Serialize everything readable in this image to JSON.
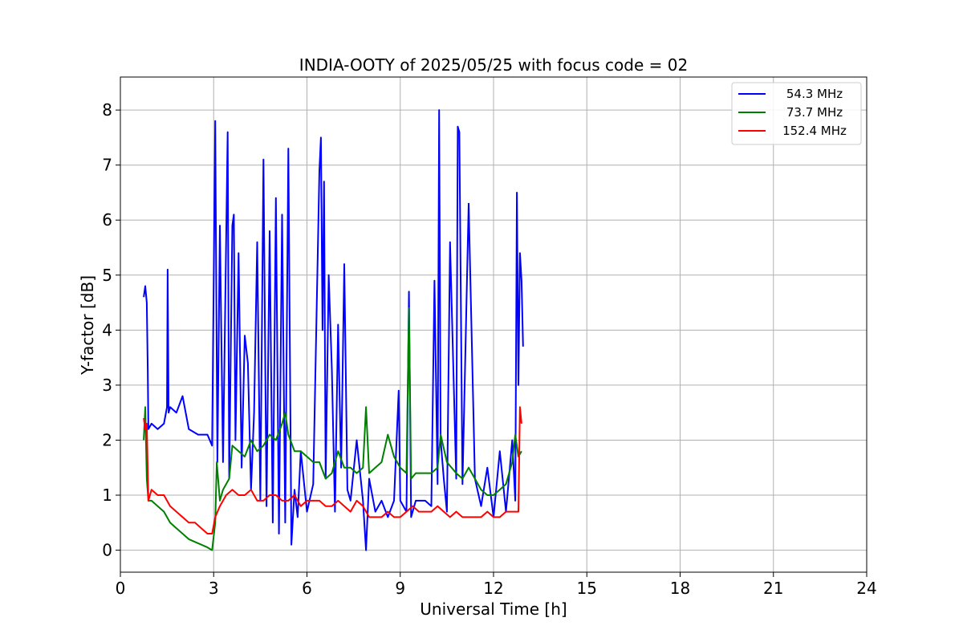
{
  "chart_data": {
    "type": "line",
    "title": "INDIA-OOTY of 2025/05/25 with focus code = 02",
    "xlabel": "Universal Time [h]",
    "ylabel": "Y-factor [dB]",
    "xlim": [
      0,
      24
    ],
    "ylim": [
      -0.4,
      8.6
    ],
    "xticks": [
      0,
      3,
      6,
      9,
      12,
      15,
      18,
      21,
      24
    ],
    "xtick_labels": [
      "0",
      "3",
      "6",
      "9",
      "12",
      "15",
      "18",
      "21",
      "24"
    ],
    "yticks": [
      0,
      1,
      2,
      3,
      4,
      5,
      6,
      7,
      8
    ],
    "ytick_labels": [
      "0",
      "1",
      "2",
      "3",
      "4",
      "5",
      "6",
      "7",
      "8"
    ],
    "grid": true,
    "legend_position": "top-right",
    "series": [
      {
        "name": "54.3 MHz",
        "color": "#0000ff",
        "x": [
          0.75,
          0.8,
          0.85,
          0.88,
          0.9,
          1.0,
          1.2,
          1.4,
          1.5,
          1.52,
          1.55,
          1.6,
          1.8,
          2.0,
          2.2,
          2.5,
          2.8,
          2.95,
          3.05,
          3.08,
          3.12,
          3.2,
          3.3,
          3.45,
          3.5,
          3.6,
          3.65,
          3.7,
          3.8,
          3.9,
          4.0,
          4.1,
          4.2,
          4.3,
          4.4,
          4.5,
          4.6,
          4.7,
          4.8,
          4.9,
          5.0,
          5.1,
          5.2,
          5.3,
          5.4,
          5.5,
          5.6,
          5.7,
          5.8,
          6.0,
          6.2,
          6.4,
          6.45,
          6.5,
          6.55,
          6.6,
          6.7,
          6.8,
          6.9,
          7.0,
          7.1,
          7.2,
          7.3,
          7.4,
          7.6,
          7.8,
          7.9,
          8.0,
          8.2,
          8.4,
          8.6,
          8.8,
          8.95,
          9.0,
          9.2,
          9.28,
          9.35,
          9.5,
          9.8,
          10.0,
          10.1,
          10.2,
          10.25,
          10.3,
          10.4,
          10.5,
          10.6,
          10.8,
          10.85,
          10.9,
          11.0,
          11.2,
          11.4,
          11.6,
          11.8,
          12.0,
          12.2,
          12.4,
          12.6,
          12.7,
          12.75,
          12.8,
          12.85,
          12.9,
          12.95
        ],
        "y": [
          4.6,
          4.8,
          4.5,
          3.3,
          2.2,
          2.3,
          2.2,
          2.3,
          2.6,
          5.1,
          2.5,
          2.6,
          2.5,
          2.8,
          2.2,
          2.1,
          2.1,
          1.9,
          7.8,
          5.0,
          1.6,
          5.9,
          1.6,
          7.6,
          1.3,
          5.9,
          6.1,
          2.0,
          5.4,
          1.5,
          3.9,
          3.4,
          1.1,
          2.5,
          5.6,
          0.9,
          7.1,
          0.8,
          5.8,
          0.5,
          6.4,
          0.3,
          6.1,
          0.5,
          7.3,
          0.1,
          1.1,
          0.6,
          1.8,
          0.7,
          1.2,
          6.9,
          7.5,
          4.0,
          6.7,
          1.3,
          5.0,
          3.3,
          0.7,
          4.1,
          1.5,
          5.2,
          1.1,
          0.9,
          2.0,
          0.9,
          0.0,
          1.3,
          0.7,
          0.9,
          0.6,
          0.9,
          2.9,
          0.9,
          0.7,
          4.7,
          0.6,
          0.9,
          0.9,
          0.8,
          4.9,
          1.2,
          8.0,
          2.0,
          1.3,
          0.7,
          5.6,
          1.3,
          7.7,
          7.6,
          1.2,
          6.3,
          1.3,
          0.8,
          1.5,
          0.6,
          1.8,
          0.7,
          2.0,
          0.9,
          6.5,
          3.0,
          5.4,
          4.9,
          3.7
        ]
      },
      {
        "name": "73.7 MHz",
        "color": "#008000",
        "x": [
          0.75,
          0.8,
          0.85,
          0.9,
          1.0,
          1.2,
          1.4,
          1.6,
          1.8,
          2.0,
          2.2,
          2.4,
          2.6,
          2.8,
          2.95,
          3.05,
          3.1,
          3.2,
          3.3,
          3.4,
          3.5,
          3.6,
          3.8,
          4.0,
          4.2,
          4.4,
          4.6,
          4.8,
          5.0,
          5.2,
          5.3,
          5.4,
          5.6,
          5.8,
          6.0,
          6.2,
          6.4,
          6.6,
          6.8,
          7.0,
          7.2,
          7.4,
          7.6,
          7.8,
          7.9,
          8.0,
          8.2,
          8.4,
          8.6,
          8.8,
          9.0,
          9.2,
          9.28,
          9.35,
          9.5,
          9.8,
          10.0,
          10.2,
          10.3,
          10.5,
          10.8,
          11.0,
          11.2,
          11.4,
          11.6,
          11.8,
          12.0,
          12.2,
          12.4,
          12.6,
          12.7,
          12.8,
          12.9
        ],
        "y": [
          2.0,
          2.6,
          1.3,
          0.9,
          0.9,
          0.8,
          0.7,
          0.5,
          0.4,
          0.3,
          0.2,
          0.15,
          0.1,
          0.05,
          0.0,
          0.5,
          1.6,
          0.9,
          1.1,
          1.2,
          1.3,
          1.9,
          1.8,
          1.7,
          2.0,
          1.8,
          1.9,
          2.1,
          2.0,
          2.3,
          2.5,
          2.1,
          1.8,
          1.8,
          1.7,
          1.6,
          1.6,
          1.3,
          1.4,
          1.8,
          1.5,
          1.5,
          1.4,
          1.5,
          2.6,
          1.4,
          1.5,
          1.6,
          2.1,
          1.7,
          1.5,
          1.4,
          4.4,
          1.3,
          1.4,
          1.4,
          1.4,
          1.5,
          2.1,
          1.6,
          1.4,
          1.3,
          1.5,
          1.3,
          1.1,
          1.0,
          1.0,
          1.1,
          1.2,
          1.6,
          2.1,
          1.7,
          1.8
        ]
      },
      {
        "name": "152.4 MHz",
        "color": "#ff0000",
        "x": [
          0.75,
          0.8,
          0.85,
          0.9,
          1.0,
          1.2,
          1.4,
          1.6,
          1.8,
          2.0,
          2.2,
          2.4,
          2.6,
          2.8,
          2.95,
          3.05,
          3.2,
          3.4,
          3.6,
          3.8,
          4.0,
          4.2,
          4.4,
          4.6,
          4.8,
          5.0,
          5.2,
          5.4,
          5.6,
          5.8,
          6.0,
          6.2,
          6.4,
          6.6,
          6.8,
          7.0,
          7.2,
          7.4,
          7.6,
          7.8,
          8.0,
          8.2,
          8.4,
          8.6,
          8.8,
          9.0,
          9.2,
          9.4,
          9.6,
          9.8,
          10.0,
          10.2,
          10.4,
          10.6,
          10.8,
          11.0,
          11.2,
          11.4,
          11.6,
          11.8,
          12.0,
          12.2,
          12.4,
          12.6,
          12.8,
          12.85,
          12.9
        ],
        "y": [
          2.4,
          2.2,
          2.3,
          0.9,
          1.1,
          1.0,
          1.0,
          0.8,
          0.7,
          0.6,
          0.5,
          0.5,
          0.4,
          0.3,
          0.3,
          0.6,
          0.8,
          1.0,
          1.1,
          1.0,
          1.0,
          1.1,
          0.9,
          0.9,
          1.0,
          1.0,
          0.9,
          0.9,
          1.0,
          0.8,
          0.9,
          0.9,
          0.9,
          0.8,
          0.8,
          0.9,
          0.8,
          0.7,
          0.9,
          0.8,
          0.6,
          0.6,
          0.6,
          0.7,
          0.6,
          0.6,
          0.7,
          0.8,
          0.7,
          0.7,
          0.7,
          0.8,
          0.7,
          0.6,
          0.7,
          0.6,
          0.6,
          0.6,
          0.6,
          0.7,
          0.6,
          0.6,
          0.7,
          0.7,
          0.7,
          2.6,
          2.3
        ]
      }
    ]
  }
}
